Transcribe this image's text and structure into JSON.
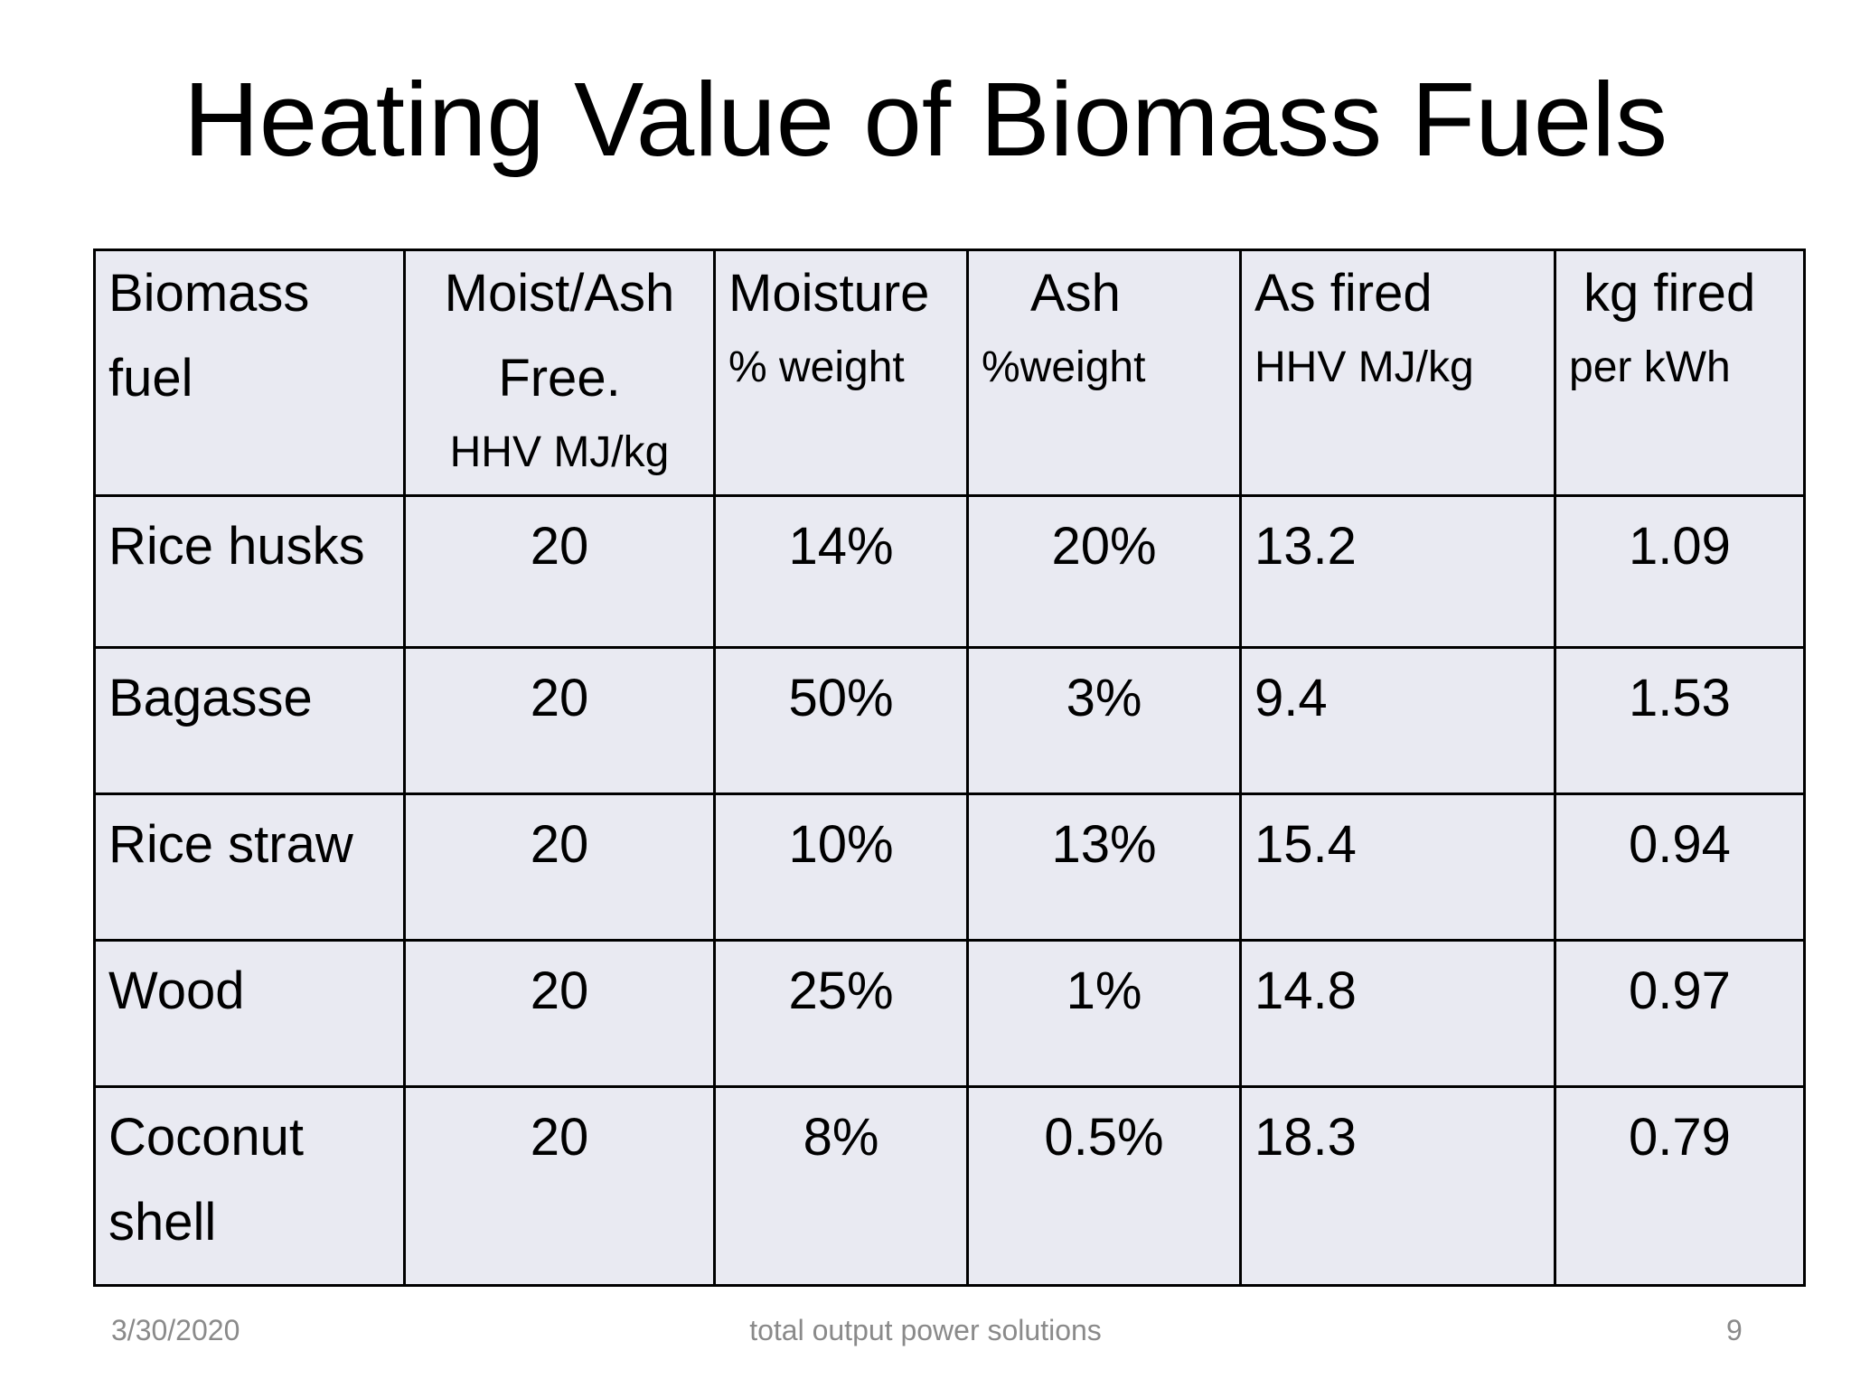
{
  "slide": {
    "title": "Heating Value of Biomass Fuels"
  },
  "table": {
    "headers": [
      {
        "line1": "Biomass",
        "line2": "fuel",
        "line3": ""
      },
      {
        "line1": "Moist/Ash",
        "line2": "Free.",
        "line3": "HHV MJ/kg"
      },
      {
        "line1": "Moisture",
        "line2": "% weight",
        "line3": ""
      },
      {
        "line1": "Ash",
        "line2": "%weight",
        "line3": ""
      },
      {
        "line1": "As fired",
        "line2": "HHV MJ/kg",
        "line3": ""
      },
      {
        "line1": "kg fired",
        "line2": "per kWh",
        "line3": ""
      }
    ],
    "rows": [
      {
        "fuel": "Rice husks",
        "maf_hhv": "20",
        "moisture": "14%",
        "ash": "20%",
        "as_fired_hhv": "13.2",
        "kg_per_kwh": "1.09"
      },
      {
        "fuel": "Bagasse",
        "maf_hhv": "20",
        "moisture": "50%",
        "ash": "3%",
        "as_fired_hhv": "9.4",
        "kg_per_kwh": "1.53"
      },
      {
        "fuel": "Rice straw",
        "maf_hhv": "20",
        "moisture": "10%",
        "ash": "13%",
        "as_fired_hhv": "15.4",
        "kg_per_kwh": "0.94"
      },
      {
        "fuel": "Wood",
        "maf_hhv": "20",
        "moisture": "25%",
        "ash": "1%",
        "as_fired_hhv": "14.8",
        "kg_per_kwh": "0.97"
      },
      {
        "fuel_line1": "Coconut",
        "fuel_line2": "shell",
        "maf_hhv": "20",
        "moisture": "8%",
        "ash": "0.5%",
        "as_fired_hhv": "18.3",
        "kg_per_kwh": "0.79"
      }
    ]
  },
  "footer": {
    "date": "3/30/2020",
    "center_text": "total output power solutions",
    "page_number": "9"
  }
}
